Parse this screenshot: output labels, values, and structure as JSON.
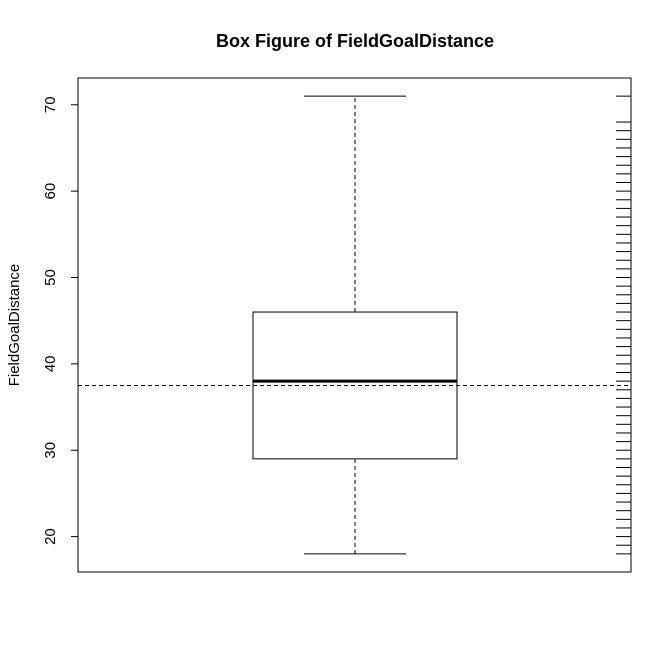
{
  "chart_data": {
    "type": "boxplot",
    "title": "Box Figure of FieldGoalDistance",
    "xlabel": "",
    "ylabel": "FieldGoalDistance",
    "ylim": [
      15.9,
      73.1
    ],
    "yticks": [
      20,
      30,
      40,
      50,
      60,
      70
    ],
    "ytick_labels": [
      "20",
      "30",
      "40",
      "50",
      "60",
      "70"
    ],
    "grid": false,
    "box": {
      "whisker_low": 18,
      "q1": 29,
      "median": 38,
      "q3": 46,
      "whisker_high": 71
    },
    "reference_line": {
      "y": 37.5,
      "style": "dashed"
    },
    "rug": [
      18,
      19,
      20,
      21,
      22,
      23,
      24,
      25,
      26,
      27,
      28,
      29,
      30,
      31,
      32,
      33,
      34,
      35,
      36,
      37,
      38,
      39,
      40,
      41,
      42,
      43,
      44,
      45,
      46,
      47,
      48,
      49,
      50,
      51,
      52,
      53,
      54,
      55,
      56,
      57,
      58,
      59,
      60,
      61,
      62,
      63,
      64,
      65,
      66,
      67,
      68,
      71
    ]
  }
}
